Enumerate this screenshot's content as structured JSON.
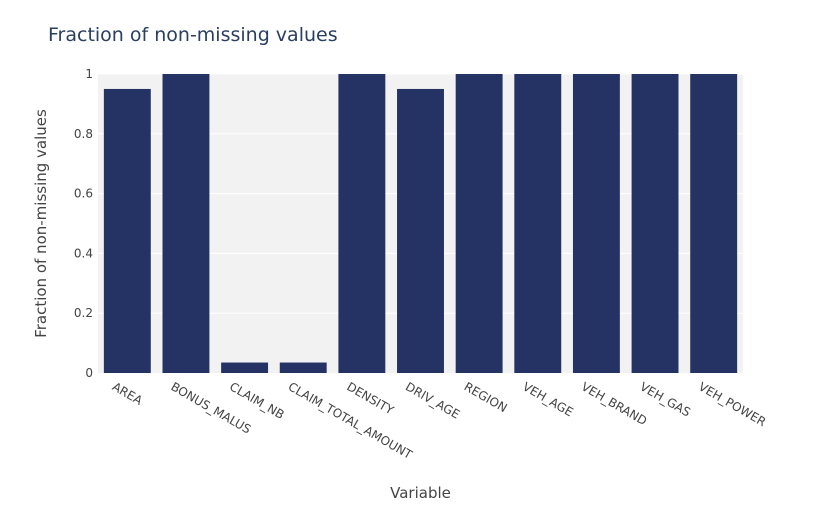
{
  "chart_data": {
    "type": "bar",
    "title": "Fraction of non-missing values",
    "xlabel": "Variable",
    "ylabel": "Fraction of non-missing values",
    "categories": [
      "AREA",
      "BONUS_MALUS",
      "CLAIM_NB",
      "CLAIM_TOTAL_AMOUNT",
      "DENSITY",
      "DRIV_AGE",
      "REGION",
      "VEH_AGE",
      "VEH_BRAND",
      "VEH_GAS",
      "VEH_POWER"
    ],
    "values": [
      0.95,
      1,
      0.035,
      0.035,
      1,
      0.95,
      1,
      1,
      1,
      1,
      1
    ],
    "ylim": [
      0,
      1
    ],
    "yticks": [
      {
        "value": 0,
        "label": "0"
      },
      {
        "value": 0.2,
        "label": "0.2"
      },
      {
        "value": 0.4,
        "label": "0.4"
      },
      {
        "value": 0.6,
        "label": "0.6"
      },
      {
        "value": 0.8,
        "label": "0.8"
      },
      {
        "value": 1,
        "label": "1"
      }
    ],
    "grid": true,
    "colors": {
      "bar": "#243264",
      "plot_background": "#f2f2f2",
      "grid": "#ffffff",
      "text": "#444444",
      "title": "#2a3f5f"
    }
  }
}
